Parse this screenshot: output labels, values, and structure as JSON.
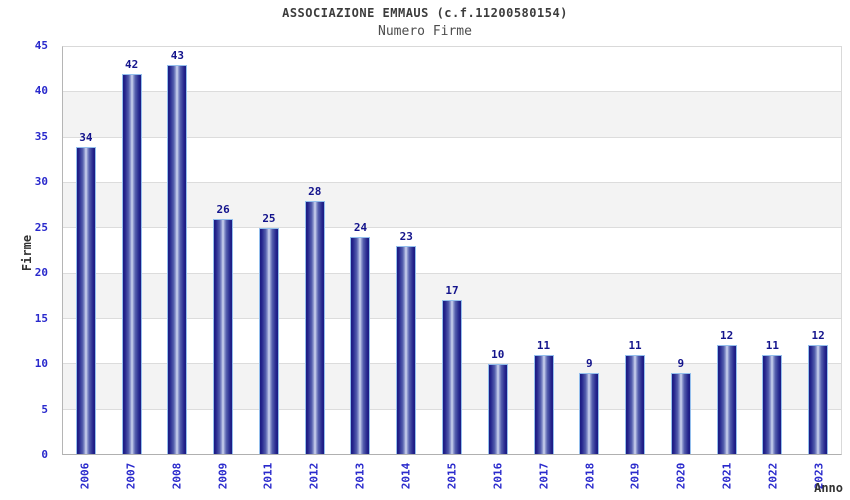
{
  "chart_data": {
    "type": "bar",
    "title": "ASSOCIAZIONE EMMAUS (c.f.11200580154)",
    "subtitle": "Numero Firme",
    "xlabel": "Anno",
    "ylabel": "Firme",
    "categories": [
      "2006",
      "2007",
      "2008",
      "2009",
      "2011",
      "2012",
      "2013",
      "2014",
      "2015",
      "2016",
      "2017",
      "2018",
      "2019",
      "2020",
      "2021",
      "2022",
      "2023"
    ],
    "values": [
      34,
      42,
      43,
      26,
      25,
      28,
      24,
      23,
      17,
      10,
      11,
      9,
      11,
      9,
      12,
      11,
      12
    ],
    "ylim": [
      0,
      45
    ],
    "ytick_step": 5,
    "grid": "horizontal-bands-alternating",
    "legend": "none",
    "bar_label_position": "above",
    "x_tick_rotation_deg": 90,
    "colors": {
      "title_color": "#3c3c3c",
      "subtitle_color": "#4d4d4d",
      "axis_title_color": "#333333",
      "tick_label": "#2929cc",
      "value_label": "#14148c",
      "bar_dark": "#1b1b82",
      "bar_light": "#dde2f4",
      "bar_border": "#94bfed",
      "band_shade": "#f3f3f3",
      "gridline": "#dcdcdc"
    }
  }
}
